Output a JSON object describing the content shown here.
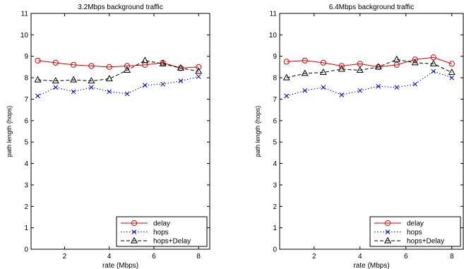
{
  "chart_data": [
    {
      "type": "line",
      "title": "3.2Mbps background traffic",
      "xlabel": "rate (Mbps)",
      "ylabel": "path length (hops)",
      "xlim": [
        0.5,
        8.5
      ],
      "ylim": [
        0,
        11
      ],
      "xticks": [
        "2",
        "4",
        "6",
        "8"
      ],
      "yticks": [
        "0",
        "1",
        "2",
        "3",
        "4",
        "5",
        "6",
        "7",
        "8",
        "9",
        "10",
        "11"
      ],
      "legend_position": "bottom-right",
      "x": [
        0.8,
        1.6,
        2.4,
        3.2,
        4.0,
        4.8,
        5.6,
        6.4,
        7.2,
        8.0
      ],
      "series": [
        {
          "name": "delay",
          "color": "#e00000",
          "style": "solid",
          "marker": "circle",
          "values": [
            8.8,
            8.7,
            8.6,
            8.55,
            8.5,
            8.55,
            8.6,
            8.7,
            8.45,
            8.5
          ]
        },
        {
          "name": "hops",
          "color": "#0000e0",
          "style": "dotted",
          "marker": "x",
          "values": [
            7.15,
            7.55,
            7.35,
            7.55,
            7.35,
            7.25,
            7.65,
            7.7,
            7.85,
            8.05
          ]
        },
        {
          "name": "hops+Delay",
          "color": "#000000",
          "style": "dashed",
          "marker": "triangle",
          "values": [
            7.9,
            7.85,
            7.9,
            7.85,
            7.95,
            8.35,
            8.8,
            8.65,
            8.45,
            8.3
          ]
        }
      ]
    },
    {
      "type": "line",
      "title": "6.4Mbps background traffic",
      "xlabel": "rate (Mbps)",
      "ylabel": "path length (hops)",
      "xlim": [
        0.5,
        8.5
      ],
      "ylim": [
        0,
        11
      ],
      "xticks": [
        "2",
        "4",
        "6",
        "8"
      ],
      "yticks": [
        "0",
        "1",
        "2",
        "3",
        "4",
        "5",
        "6",
        "7",
        "8",
        "9",
        "10",
        "11"
      ],
      "legend_position": "bottom-right",
      "x": [
        0.8,
        1.6,
        2.4,
        3.2,
        4.0,
        4.8,
        5.6,
        6.4,
        7.2,
        8.0
      ],
      "series": [
        {
          "name": "delay",
          "color": "#e00000",
          "style": "solid",
          "marker": "circle",
          "values": [
            8.75,
            8.8,
            8.7,
            8.55,
            8.65,
            8.5,
            8.6,
            8.85,
            8.95,
            8.65
          ]
        },
        {
          "name": "hops",
          "color": "#0000e0",
          "style": "dotted",
          "marker": "x",
          "values": [
            7.15,
            7.4,
            7.55,
            7.2,
            7.4,
            7.6,
            7.55,
            7.7,
            8.3,
            8.0
          ]
        },
        {
          "name": "hops+Delay",
          "color": "#000000",
          "style": "dashed",
          "marker": "triangle",
          "values": [
            8.0,
            8.2,
            8.25,
            8.4,
            8.35,
            8.5,
            8.85,
            8.7,
            8.65,
            8.25
          ]
        }
      ]
    }
  ]
}
